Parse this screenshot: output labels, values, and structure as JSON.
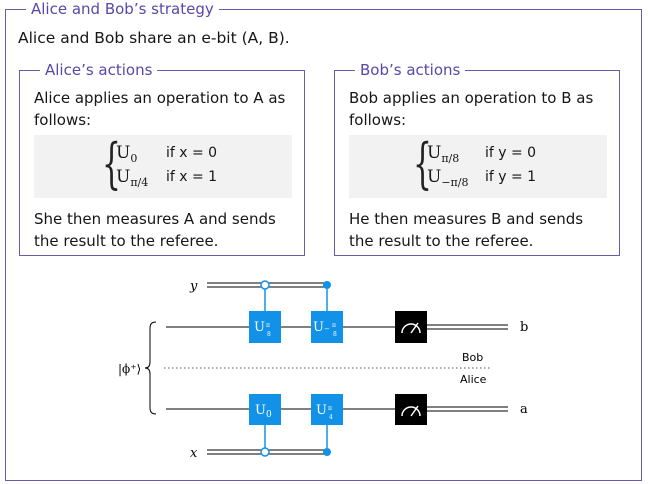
{
  "strategy": {
    "title": "Alice and Bob’s strategy",
    "intro": "Alice and Bob share an e-bit (A, B)."
  },
  "alice": {
    "title": "Alice’s actions",
    "desc": "Alice applies an operation to A as follows:",
    "cases": [
      {
        "op": "U",
        "sub": "0",
        "cond": "if x = 0"
      },
      {
        "op": "U",
        "sub": "π/4",
        "cond": "if x = 1"
      }
    ],
    "after": "She then measures A and sends the result to the referee."
  },
  "bob": {
    "title": "Bob’s actions",
    "desc": "Bob applies an operation to B as follows:",
    "cases": [
      {
        "op": "U",
        "sub": "π/8",
        "cond": "if y = 0"
      },
      {
        "op": "U",
        "sub": "−π/8",
        "cond": "if y = 1"
      }
    ],
    "after": "He then measures B and sends the result to the referee."
  },
  "circuit": {
    "labels": {
      "y": "y",
      "x": "x",
      "state": "|ϕ⁺⟩",
      "b": "b",
      "a": "a",
      "bob": "Bob",
      "alice": "Alice"
    },
    "gates": {
      "bob_1": {
        "op": "U",
        "sub_num": "π",
        "sub_den": "8"
      },
      "bob_2": {
        "op": "U",
        "sub_prefix": "−",
        "sub_num": "π",
        "sub_den": "8"
      },
      "alice_1": {
        "op": "U",
        "sub": "0"
      },
      "alice_2": {
        "op": "U",
        "sub_num": "π",
        "sub_den": "4"
      }
    },
    "colors": {
      "gate": "#1192e8",
      "meter": "#000000",
      "wire": "#000000"
    }
  }
}
